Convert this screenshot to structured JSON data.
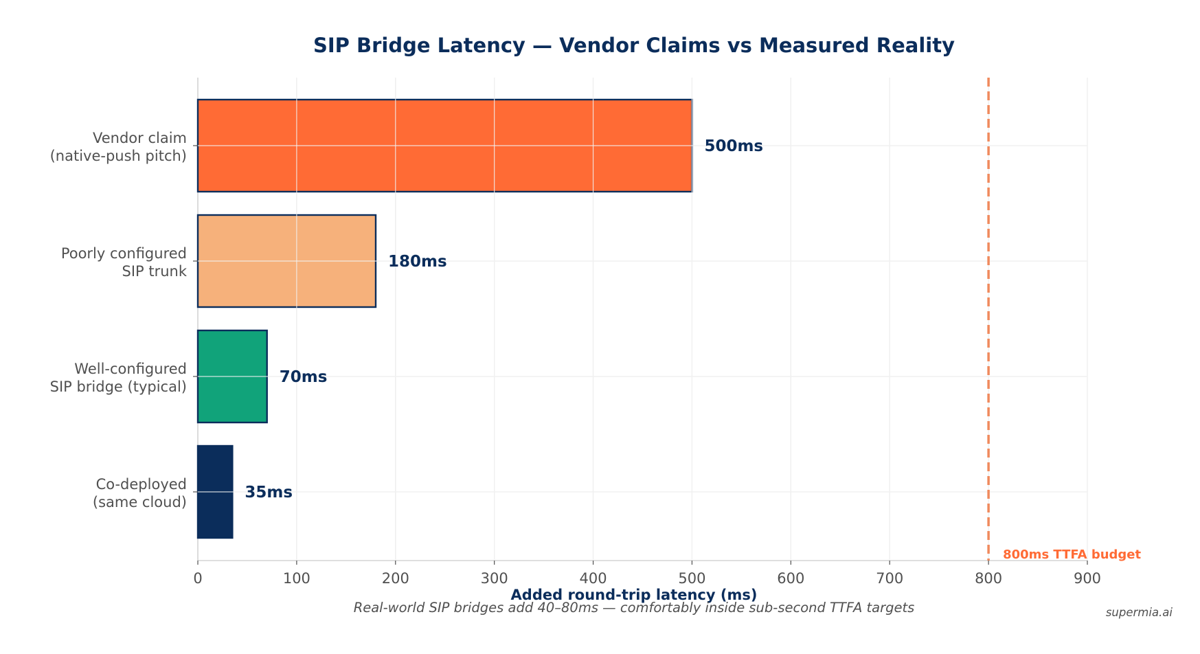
{
  "chart_data": {
    "type": "bar",
    "orientation": "horizontal",
    "title": "SIP Bridge Latency — Vendor Claims vs Measured Reality",
    "subtitle": "Real-world SIP bridges add 40–80ms — comfortably inside sub-second TTFA targets",
    "xlabel": "Added round-trip latency (ms)",
    "ylabel": "",
    "xlim": [
      0,
      900
    ],
    "xticks": [
      0,
      100,
      200,
      300,
      400,
      500,
      600,
      700,
      800,
      900
    ],
    "xtick_labels": [
      "0",
      "100",
      "200",
      "300",
      "400",
      "500",
      "600",
      "700",
      "800",
      "900"
    ],
    "grid": true,
    "categories": [
      [
        "Vendor claim",
        "(native-push pitch)"
      ],
      [
        "Poorly configured",
        "SIP trunk"
      ],
      [
        "Well-configured",
        "SIP bridge (typical)"
      ],
      [
        "Co-deployed",
        "(same cloud)"
      ]
    ],
    "values": [
      500,
      180,
      70,
      35
    ],
    "value_labels": [
      "500ms",
      "180ms",
      "70ms",
      "35ms"
    ],
    "bar_colors": [
      "#ff6b35",
      "#f6b17b",
      "#11a37a",
      "#0b2d5b"
    ],
    "reference_line": {
      "value": 800,
      "label": "800ms TTFA budget",
      "color": "#f08a5d"
    },
    "watermark": "supermia.ai"
  },
  "colors": {
    "title": "#0b2d5b",
    "text": "#505050",
    "value_label": "#0b2d5b",
    "bar_edge": "#0b2d5b",
    "grid": "#e6e6e6",
    "axis": "#cccccc",
    "ref_label": "#ff6b35"
  }
}
